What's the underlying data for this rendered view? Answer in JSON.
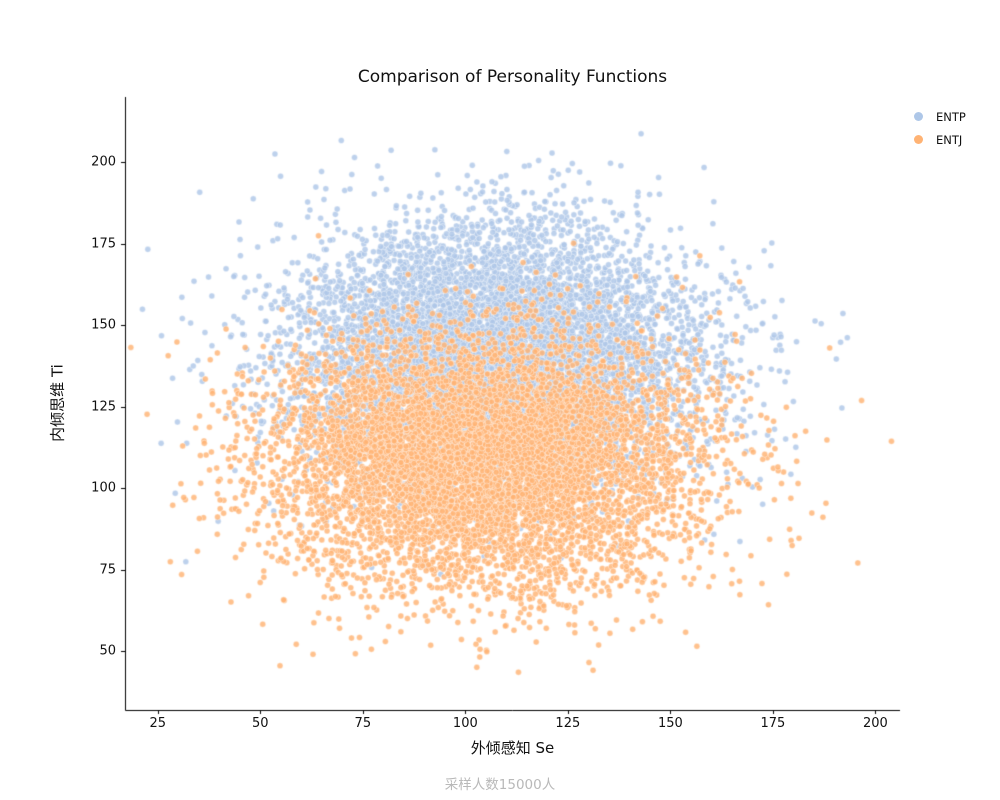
{
  "chart_data": {
    "type": "scatter",
    "title": "Comparison of Personality Functions",
    "xlabel": "外倾感知 Se",
    "ylabel": "内倾思维 Ti",
    "caption": "采样人数15000人",
    "caption_color": "#b9b9b9",
    "axis_color": "#000000",
    "grid": false,
    "xlim": [
      17,
      206
    ],
    "ylim": [
      32,
      220
    ],
    "xticks": [
      25,
      50,
      75,
      100,
      125,
      150,
      175,
      200
    ],
    "yticks": [
      50,
      75,
      100,
      125,
      150,
      175,
      200
    ],
    "legend": {
      "position": "upper-right-outside",
      "entries": [
        "ENTP",
        "ENTJ"
      ]
    },
    "marker": {
      "radius_px": 3.0,
      "alpha": 0.82,
      "edge_color": "#ffffff"
    },
    "series": [
      {
        "name": "ENTP",
        "color": "#aec7e8",
        "n": 7500,
        "mean": [
          107,
          142
        ],
        "std": [
          25,
          20
        ],
        "seed": 42
      },
      {
        "name": "ENTJ",
        "color": "#ffb374",
        "n": 7500,
        "mean": [
          104,
          108
        ],
        "std": [
          26,
          19
        ],
        "seed": 1337
      }
    ]
  }
}
